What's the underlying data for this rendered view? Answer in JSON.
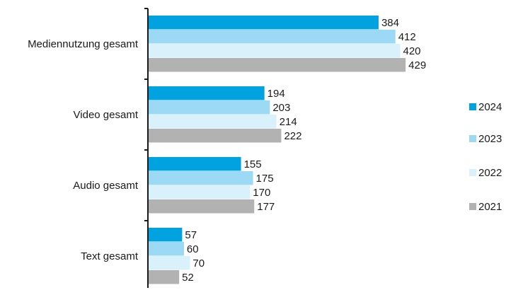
{
  "chart_data": {
    "type": "bar",
    "orientation": "horizontal",
    "categories": [
      "Mediennutzung gesamt",
      "Video gesamt",
      "Audio gesamt",
      "Text gesamt"
    ],
    "series": [
      {
        "name": "2024",
        "color": "#00a3e0",
        "values": [
          384,
          194,
          155,
          57
        ]
      },
      {
        "name": "2023",
        "color": "#9bd9f4",
        "values": [
          412,
          203,
          175,
          60
        ]
      },
      {
        "name": "2022",
        "color": "#d9f1fb",
        "values": [
          420,
          214,
          170,
          70
        ]
      },
      {
        "name": "2021",
        "color": "#b2b2b2",
        "values": [
          429,
          222,
          177,
          52
        ]
      }
    ],
    "xlim": [
      0,
      430
    ],
    "grid": false,
    "legend_position": "right",
    "data_labels": true
  }
}
